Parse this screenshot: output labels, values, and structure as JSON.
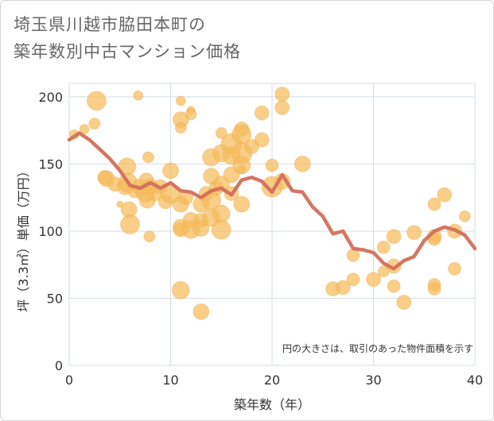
{
  "title_line1": "埼玉県川越市脇田本町の",
  "title_line2": "築年数別中古マンション価格",
  "chart_data": {
    "type": "scatter",
    "xlabel": "築年数（年）",
    "ylabel": "坪（3.3㎡）単価（万円）",
    "xlim": [
      0,
      40
    ],
    "ylim": [
      0,
      210
    ],
    "xticks": [
      "0",
      "10",
      "20",
      "30",
      "40"
    ],
    "yticks": [
      "0",
      "50",
      "100",
      "150",
      "200"
    ],
    "note": "円の大きさは、取引のあった物件面積を示す",
    "colors": {
      "bubble": "#f5bb5c",
      "line": "#d26f5c",
      "grid": "#d5dde6"
    },
    "bubbles": [
      {
        "x": 0.5,
        "y": 172,
        "s": 6
      },
      {
        "x": 1.5,
        "y": 176,
        "s": 6
      },
      {
        "x": 2.5,
        "y": 180,
        "s": 7
      },
      {
        "x": 2.7,
        "y": 197,
        "s": 12
      },
      {
        "x": 3.5,
        "y": 140,
        "s": 9
      },
      {
        "x": 3.7,
        "y": 139,
        "s": 10
      },
      {
        "x": 4.5,
        "y": 135,
        "s": 9
      },
      {
        "x": 5,
        "y": 120,
        "s": 4
      },
      {
        "x": 5.5,
        "y": 133,
        "s": 10
      },
      {
        "x": 5.7,
        "y": 148,
        "s": 11
      },
      {
        "x": 5.8,
        "y": 136,
        "s": 12
      },
      {
        "x": 5.9,
        "y": 116,
        "s": 10
      },
      {
        "x": 6,
        "y": 105,
        "s": 12
      },
      {
        "x": 6.5,
        "y": 130,
        "s": 9
      },
      {
        "x": 6.8,
        "y": 201,
        "s": 6
      },
      {
        "x": 7,
        "y": 133,
        "s": 10
      },
      {
        "x": 7.5,
        "y": 128,
        "s": 11
      },
      {
        "x": 7.6,
        "y": 138,
        "s": 9
      },
      {
        "x": 7.7,
        "y": 123,
        "s": 10
      },
      {
        "x": 7.8,
        "y": 155,
        "s": 7
      },
      {
        "x": 7.9,
        "y": 96,
        "s": 7
      },
      {
        "x": 8,
        "y": 133,
        "s": 10
      },
      {
        "x": 8.5,
        "y": 128,
        "s": 9
      },
      {
        "x": 9,
        "y": 133,
        "s": 9
      },
      {
        "x": 9.5,
        "y": 122,
        "s": 9
      },
      {
        "x": 10,
        "y": 145,
        "s": 10
      },
      {
        "x": 10,
        "y": 128,
        "s": 12
      },
      {
        "x": 11,
        "y": 197,
        "s": 6
      },
      {
        "x": 11,
        "y": 183,
        "s": 10
      },
      {
        "x": 11,
        "y": 177,
        "s": 7
      },
      {
        "x": 11,
        "y": 120,
        "s": 10
      },
      {
        "x": 11,
        "y": 103,
        "s": 10
      },
      {
        "x": 11,
        "y": 101,
        "s": 9
      },
      {
        "x": 11,
        "y": 56,
        "s": 11
      },
      {
        "x": 11.5,
        "y": 125,
        "s": 9
      },
      {
        "x": 12,
        "y": 190,
        "s": 5
      },
      {
        "x": 12,
        "y": 187,
        "s": 7
      },
      {
        "x": 12,
        "y": 108,
        "s": 10
      },
      {
        "x": 12,
        "y": 101,
        "s": 11
      },
      {
        "x": 13,
        "y": 120,
        "s": 10
      },
      {
        "x": 13,
        "y": 108,
        "s": 9
      },
      {
        "x": 13,
        "y": 102,
        "s": 10
      },
      {
        "x": 13,
        "y": 40,
        "s": 10
      },
      {
        "x": 13.5,
        "y": 128,
        "s": 9
      },
      {
        "x": 14,
        "y": 155,
        "s": 11
      },
      {
        "x": 14,
        "y": 141,
        "s": 10
      },
      {
        "x": 14,
        "y": 123,
        "s": 12
      },
      {
        "x": 14,
        "y": 110,
        "s": 11
      },
      {
        "x": 14.5,
        "y": 132,
        "s": 9
      },
      {
        "x": 15,
        "y": 173,
        "s": 7
      },
      {
        "x": 15,
        "y": 158,
        "s": 11
      },
      {
        "x": 15,
        "y": 135,
        "s": 10
      },
      {
        "x": 15,
        "y": 113,
        "s": 11
      },
      {
        "x": 15,
        "y": 101,
        "s": 12
      },
      {
        "x": 16,
        "y": 165,
        "s": 13
      },
      {
        "x": 16,
        "y": 156,
        "s": 11
      },
      {
        "x": 16,
        "y": 142,
        "s": 10
      },
      {
        "x": 16,
        "y": 128,
        "s": 9
      },
      {
        "x": 17,
        "y": 176,
        "s": 9
      },
      {
        "x": 17,
        "y": 172,
        "s": 12
      },
      {
        "x": 17,
        "y": 158,
        "s": 13
      },
      {
        "x": 17,
        "y": 149,
        "s": 11
      },
      {
        "x": 17,
        "y": 146,
        "s": 5
      },
      {
        "x": 17,
        "y": 120,
        "s": 10
      },
      {
        "x": 18,
        "y": 163,
        "s": 9
      },
      {
        "x": 19,
        "y": 188,
        "s": 9
      },
      {
        "x": 19,
        "y": 168,
        "s": 9
      },
      {
        "x": 20,
        "y": 149,
        "s": 8
      },
      {
        "x": 20,
        "y": 133,
        "s": 13
      },
      {
        "x": 21,
        "y": 202,
        "s": 9
      },
      {
        "x": 21,
        "y": 192,
        "s": 9
      },
      {
        "x": 21,
        "y": 137,
        "s": 10
      },
      {
        "x": 23,
        "y": 150,
        "s": 10
      },
      {
        "x": 26,
        "y": 57,
        "s": 9
      },
      {
        "x": 27,
        "y": 58,
        "s": 9
      },
      {
        "x": 28,
        "y": 82,
        "s": 8
      },
      {
        "x": 28,
        "y": 64,
        "s": 8
      },
      {
        "x": 30,
        "y": 64,
        "s": 9
      },
      {
        "x": 31,
        "y": 88,
        "s": 8
      },
      {
        "x": 31,
        "y": 70,
        "s": 7
      },
      {
        "x": 32,
        "y": 96,
        "s": 9
      },
      {
        "x": 32,
        "y": 74,
        "s": 9
      },
      {
        "x": 32,
        "y": 59,
        "s": 8
      },
      {
        "x": 33,
        "y": 47,
        "s": 9
      },
      {
        "x": 34,
        "y": 99,
        "s": 9
      },
      {
        "x": 36,
        "y": 120,
        "s": 8
      },
      {
        "x": 36,
        "y": 96,
        "s": 9
      },
      {
        "x": 36,
        "y": 94,
        "s": 8
      },
      {
        "x": 36,
        "y": 60,
        "s": 8
      },
      {
        "x": 36,
        "y": 57,
        "s": 8
      },
      {
        "x": 37,
        "y": 127,
        "s": 9
      },
      {
        "x": 38,
        "y": 100,
        "s": 9
      },
      {
        "x": 38,
        "y": 72,
        "s": 8
      },
      {
        "x": 39,
        "y": 111,
        "s": 7
      }
    ],
    "line": {
      "x": [
        0,
        1,
        2,
        3,
        4,
        5,
        6,
        7,
        8,
        9,
        10,
        11,
        12,
        13,
        14,
        15,
        16,
        17,
        18,
        19,
        20,
        21,
        22,
        23,
        24,
        25,
        26,
        27,
        28,
        29,
        30,
        31,
        32,
        33,
        34,
        35,
        36,
        37,
        38,
        39,
        40
      ],
      "y": [
        168,
        173,
        168,
        161,
        154,
        145,
        134,
        132,
        136,
        132,
        136,
        130,
        129,
        125,
        130,
        132,
        127,
        138,
        140,
        137,
        129,
        142,
        130,
        129,
        118,
        111,
        98,
        100,
        87,
        86,
        84,
        76,
        72,
        78,
        81,
        93,
        100,
        103,
        101,
        97,
        87
      ]
    }
  }
}
